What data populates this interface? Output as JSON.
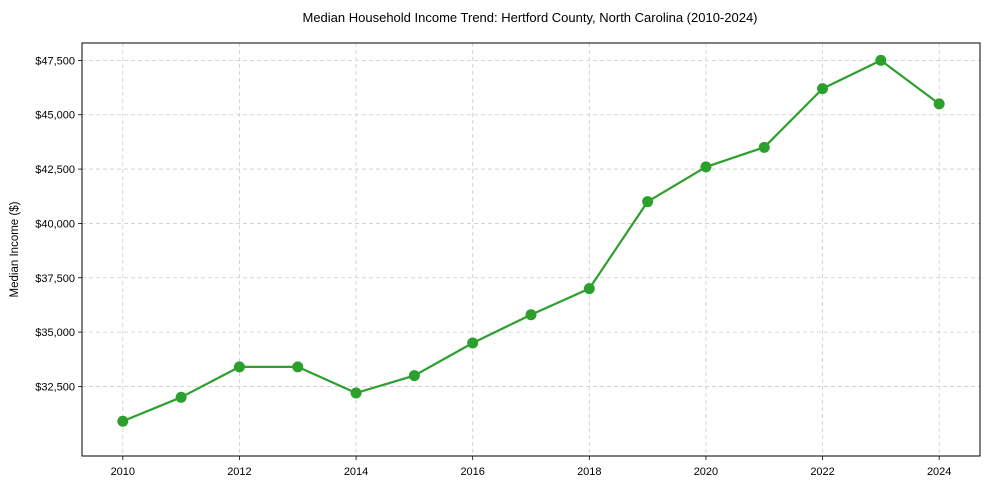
{
  "chart_data": {
    "type": "line",
    "title": "Median Household Income Trend: Hertford County, North Carolina (2010-2024)",
    "xlabel": "",
    "ylabel": "Median Income ($)",
    "x": [
      2010,
      2011,
      2012,
      2013,
      2014,
      2015,
      2016,
      2017,
      2018,
      2019,
      2020,
      2021,
      2022,
      2023,
      2024
    ],
    "series": [
      {
        "name": "Median Household Income",
        "color": "#2ca02c",
        "marker": "circle",
        "values": [
          30900,
          32000,
          33400,
          33400,
          32200,
          33000,
          34500,
          35800,
          37000,
          41000,
          42600,
          43500,
          46200,
          47500,
          45500
        ]
      }
    ],
    "xticks": [
      2010,
      2012,
      2014,
      2016,
      2018,
      2020,
      2022,
      2024
    ],
    "xtick_labels": [
      "2010",
      "2012",
      "2014",
      "2016",
      "2018",
      "2020",
      "2022",
      "2024"
    ],
    "yticks": [
      32500,
      35000,
      37500,
      40000,
      42500,
      45000,
      47500
    ],
    "ytick_labels": [
      "$32,500",
      "$35,000",
      "$37,500",
      "$40,000",
      "$42,500",
      "$45,000",
      "$47,500"
    ],
    "xlim": [
      2009.3,
      2024.7
    ],
    "ylim": [
      29300,
      48300
    ],
    "grid": true,
    "grid_style": "dashed",
    "legend": null
  },
  "colors": {
    "line": "#2ca02c",
    "grid": "#cccccc",
    "axes": "#000000"
  }
}
